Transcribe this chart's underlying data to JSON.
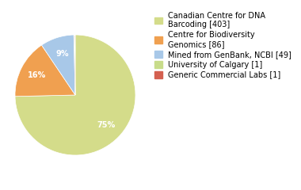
{
  "legend_labels": [
    "Canadian Centre for DNA\nBarcoding [403]",
    "Centre for Biodiversity\nGenomics [86]",
    "Mined from GenBank, NCBI [49]",
    "University of Calgary [1]",
    "Generic Commercial Labs [1]"
  ],
  "values": [
    403,
    86,
    49,
    1,
    1
  ],
  "colors": [
    "#d4dc8a",
    "#f0a050",
    "#a8c8e8",
    "#c8dc8a",
    "#d46050"
  ],
  "startangle": 90,
  "pct_distance": 0.72,
  "text_color": "white",
  "font_size": 7,
  "legend_font_size": 7
}
